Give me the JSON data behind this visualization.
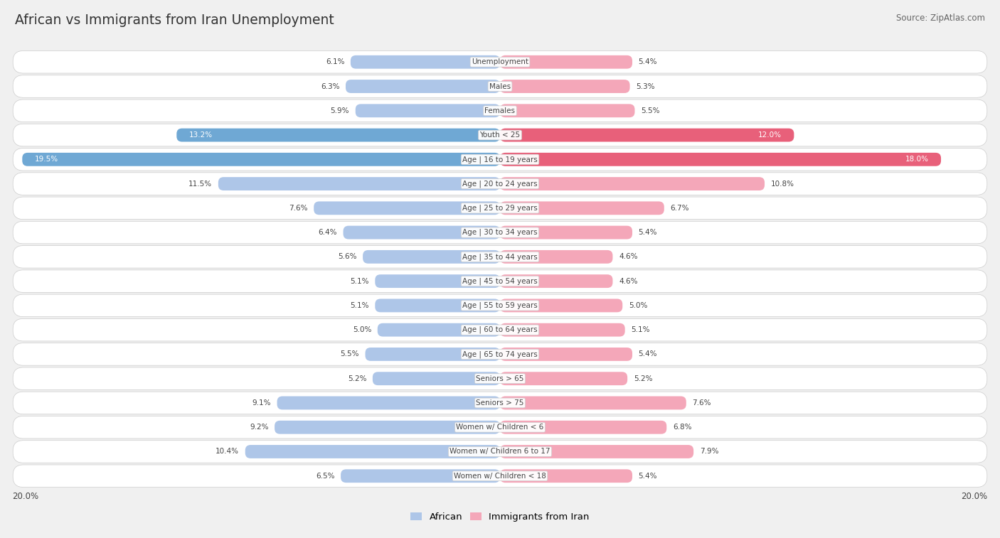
{
  "title": "African vs Immigrants from Iran Unemployment",
  "source": "Source: ZipAtlas.com",
  "categories": [
    "Unemployment",
    "Males",
    "Females",
    "Youth < 25",
    "Age | 16 to 19 years",
    "Age | 20 to 24 years",
    "Age | 25 to 29 years",
    "Age | 30 to 34 years",
    "Age | 35 to 44 years",
    "Age | 45 to 54 years",
    "Age | 55 to 59 years",
    "Age | 60 to 64 years",
    "Age | 65 to 74 years",
    "Seniors > 65",
    "Seniors > 75",
    "Women w/ Children < 6",
    "Women w/ Children 6 to 17",
    "Women w/ Children < 18"
  ],
  "african_values": [
    6.1,
    6.3,
    5.9,
    13.2,
    19.5,
    11.5,
    7.6,
    6.4,
    5.6,
    5.1,
    5.1,
    5.0,
    5.5,
    5.2,
    9.1,
    9.2,
    10.4,
    6.5
  ],
  "iran_values": [
    5.4,
    5.3,
    5.5,
    12.0,
    18.0,
    10.8,
    6.7,
    5.4,
    4.6,
    4.6,
    5.0,
    5.1,
    5.4,
    5.2,
    7.6,
    6.8,
    7.9,
    5.4
  ],
  "max_val": 20.0,
  "african_color_light": "#aec6e8",
  "african_color_dark": "#6fa8d4",
  "iran_color_light": "#f4a7b9",
  "iran_color_dark": "#e8607a",
  "row_bg": "#f0f0f0",
  "pill_bg": "#e8e8e8",
  "label_color_dark": "#444444",
  "label_color_white": "#ffffff",
  "title_color": "#333333",
  "african_legend": "African",
  "iran_legend": "Immigrants from Iran",
  "african_threshold": 13.0,
  "iran_threshold": 11.0
}
